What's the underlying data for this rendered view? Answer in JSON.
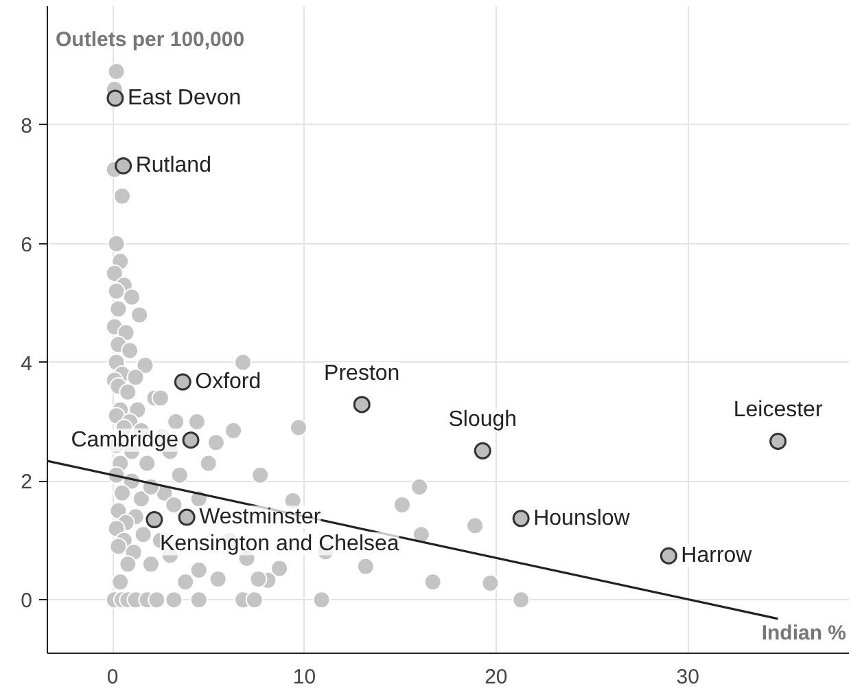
{
  "chart_data": {
    "type": "scatter",
    "xlabel": "Indian %",
    "ylabel": "Outlets per 100,000",
    "xlim": [
      -3.4,
      38.4
    ],
    "ylim": [
      -0.9,
      10.0
    ],
    "xticks": [
      0,
      10,
      20,
      30
    ],
    "yticks": [
      0,
      2,
      4,
      6,
      8
    ],
    "grid": true,
    "series": [
      {
        "color": "#c4c4c4",
        "x": [
          0.2,
          0.1,
          0.1,
          0.5,
          0.2,
          0.4,
          0.1,
          0.6,
          0.2,
          1.0,
          0.3,
          1.4,
          0.1,
          0.7,
          0.3,
          0.9,
          0.2,
          1.7,
          0.5,
          0.1,
          1.2,
          0.3,
          0.8,
          2.2,
          2.5,
          0.4,
          1.3,
          0.2,
          0.9,
          0.6,
          1.5,
          2.6,
          3.3,
          4.4,
          6.8,
          6.3,
          9.7,
          5.4,
          3.0,
          0.2,
          1.0,
          0.4,
          1.8,
          3.5,
          2.7,
          5.0,
          0.2,
          1.0,
          0.5,
          1.5,
          2.0,
          0.3,
          1.2,
          0.7,
          4.5,
          7.7,
          3.2,
          0.2,
          1.6,
          0.6,
          2.5,
          0.3,
          1.1,
          3.0,
          0.8,
          2.0,
          4.5,
          7.0,
          8.7,
          8.1,
          9.4,
          11.1,
          13.2,
          6.1,
          7.6,
          0.4,
          3.8,
          5.5,
          0.1,
          0.5,
          0.8,
          1.2,
          1.8,
          2.3,
          3.2,
          4.5,
          6.8,
          7.4,
          10.9,
          21.3,
          15.1,
          16.0,
          16.1,
          18.9,
          16.7,
          19.7
        ],
        "values": [
          8.9,
          8.6,
          7.25,
          6.8,
          6.0,
          5.7,
          5.5,
          5.3,
          5.2,
          5.1,
          4.9,
          4.8,
          4.6,
          4.5,
          4.3,
          4.2,
          4.0,
          3.95,
          3.8,
          3.7,
          3.75,
          3.6,
          3.5,
          3.4,
          3.4,
          3.2,
          3.2,
          3.1,
          3.0,
          2.9,
          2.85,
          2.75,
          3.0,
          3.0,
          4.0,
          2.85,
          2.9,
          2.65,
          2.5,
          2.6,
          2.5,
          2.3,
          2.3,
          2.1,
          1.8,
          2.3,
          2.1,
          2.0,
          1.8,
          1.7,
          1.9,
          1.5,
          1.4,
          1.3,
          1.7,
          2.1,
          1.6,
          1.2,
          1.1,
          1.0,
          1.0,
          0.9,
          0.8,
          0.75,
          0.6,
          0.6,
          0.5,
          0.7,
          0.53,
          0.33,
          1.67,
          0.81,
          0.56,
          1.0,
          0.35,
          0.3,
          0.3,
          0.35,
          0,
          0,
          0,
          0,
          0,
          0,
          0,
          0,
          0,
          0,
          0,
          0,
          1.6,
          1.9,
          1.1,
          1.25,
          0.3,
          0.28
        ]
      },
      {
        "color": "#bdbdbd",
        "x": [
          0.14,
          0.56,
          3.66,
          13.0,
          19.3,
          34.7,
          4.08,
          21.3,
          29.0,
          2.18,
          3.87
        ],
        "values": [
          8.45,
          7.31,
          3.67,
          3.29,
          2.51,
          2.67,
          2.69,
          1.37,
          0.74,
          1.35,
          1.39
        ]
      },
      {
        "type": "line",
        "color": "#222222",
        "x": [
          -3.4,
          34.7
        ],
        "values": [
          2.34,
          -0.32
        ]
      }
    ],
    "annotations": [
      {
        "text": "East Devon",
        "x": 0.14,
        "y": 8.45
      },
      {
        "text": "Rutland",
        "x": 0.56,
        "y": 7.31
      },
      {
        "text": "Oxford",
        "x": 3.66,
        "y": 3.67
      },
      {
        "text": "Preston",
        "x": 13.0,
        "y": 3.29
      },
      {
        "text": "Slough",
        "x": 19.3,
        "y": 2.51
      },
      {
        "text": "Leicester",
        "x": 34.7,
        "y": 2.67
      },
      {
        "text": "Cambridge",
        "x": 4.08,
        "y": 2.69
      },
      {
        "text": "Hounslow",
        "x": 21.3,
        "y": 1.37
      },
      {
        "text": "Harrow",
        "x": 29.0,
        "y": 0.74
      },
      {
        "text": "Kensington and Chelsea",
        "x": 2.18,
        "y": 1.35
      },
      {
        "text": "Westminster",
        "x": 3.87,
        "y": 1.39
      }
    ]
  }
}
